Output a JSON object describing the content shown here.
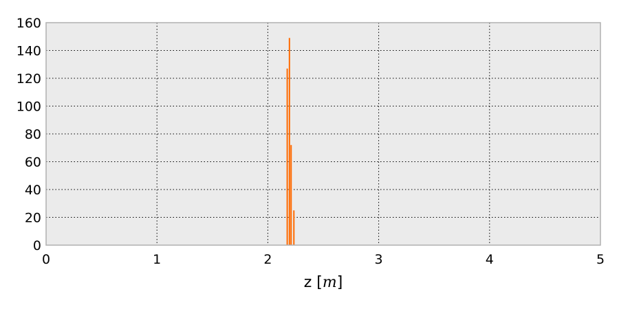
{
  "chart_data": {
    "type": "bar",
    "title": "",
    "xlabel": "z [m]",
    "xlabel_plain": "z [",
    "xlabel_math": "m",
    "xlabel_close": "]",
    "ylabel": "",
    "xlim": [
      0,
      5
    ],
    "ylim": [
      0,
      160
    ],
    "x_ticks": [
      0,
      1,
      2,
      3,
      4,
      5
    ],
    "y_ticks": [
      0,
      20,
      40,
      60,
      80,
      100,
      120,
      140,
      160
    ],
    "grid": true,
    "colors": {
      "background": "#ebebeb",
      "bar": "#ff6a00",
      "grid": "#000000",
      "frame": "#b0b0b0"
    },
    "series": [
      {
        "values": [
          {
            "x": 2.175,
            "y": 127
          },
          {
            "x": 2.195,
            "y": 149
          },
          {
            "x": 2.21,
            "y": 72
          },
          {
            "x": 2.235,
            "y": 25
          }
        ]
      }
    ]
  }
}
